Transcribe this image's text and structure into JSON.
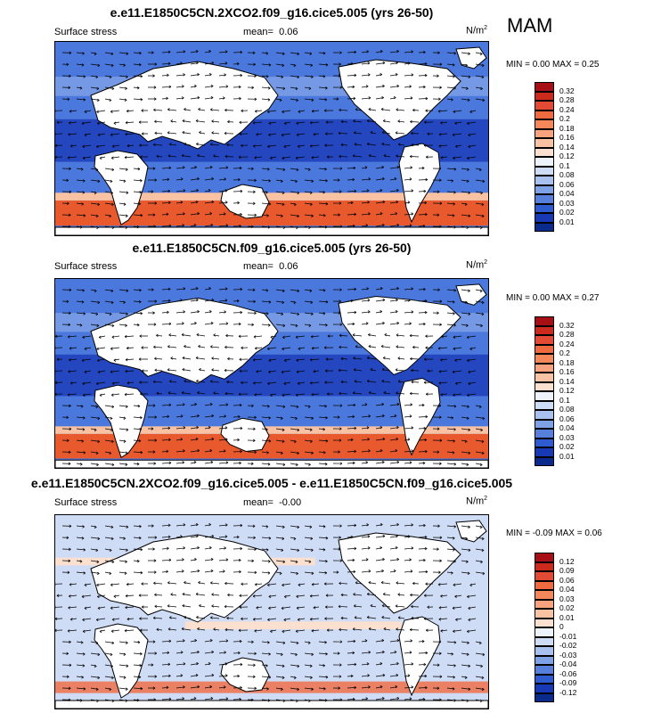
{
  "season": "MAM",
  "colors": {
    "ocean_deep": "#1432b4",
    "ocean_mid": "#4b78dc",
    "land": "#ffffff",
    "coast": "#000000",
    "warm": "#e8592e"
  },
  "panels": [
    {
      "title": "e.e11.E1850C5CN.2XCO2.f09_g16.cice5.005 (yrs 26-50)",
      "left_label": "Surface stress",
      "mean_label": "mean=",
      "mean_value": "0.06",
      "units_base": "N/m",
      "units_exp": "2",
      "minmax": "MIN =   0.00 MAX =   0.25",
      "type": "abs"
    },
    {
      "title": "e.e11.E1850C5CN.f09_g16.cice5.005 (yrs 26-50)",
      "left_label": "Surface stress",
      "mean_label": "mean=",
      "mean_value": "0.06",
      "units_base": "N/m",
      "units_exp": "2",
      "minmax": "MIN =   0.00 MAX =   0.27",
      "type": "abs"
    },
    {
      "title": "e.e11.E1850C5CN.2XCO2.f09_g16.cice5.005 - e.e11.E1850C5CN.f09_g16.cice5.005",
      "left_label": "Surface stress",
      "mean_label": "mean=",
      "mean_value": "-0.00",
      "units_base": "N/m",
      "units_exp": "2",
      "minmax": "MIN =  -0.09 MAX =   0.06",
      "type": "diff"
    }
  ],
  "colorbars": {
    "abs": {
      "labels": [
        "0.32",
        "0.28",
        "0.24",
        "0.2",
        "0.18",
        "0.16",
        "0.14",
        "0.12",
        "0.1",
        "0.08",
        "0.06",
        "0.04",
        "0.03",
        "0.02",
        "0.01"
      ],
      "colors": [
        "#a50f15",
        "#cb2a1c",
        "#e34a33",
        "#f06a40",
        "#f4885b",
        "#f7a47e",
        "#f9c2a3",
        "#fce0cf",
        "#eef2fb",
        "#cfdcf6",
        "#a9c1ef",
        "#7fa1e6",
        "#5680dc",
        "#2f5bd0",
        "#173ab4",
        "#0a2a8c"
      ]
    },
    "diff": {
      "labels": [
        "0.12",
        "0.09",
        "0.06",
        "0.04",
        "0.03",
        "0.02",
        "0.01",
        "0",
        "-0.01",
        "-0.02",
        "-0.03",
        "-0.04",
        "-0.06",
        "-0.09",
        "-0.12"
      ],
      "colors": [
        "#a50f15",
        "#cb2a1c",
        "#e34a33",
        "#f06a40",
        "#f4885b",
        "#f7a47e",
        "#f9c2a3",
        "#fce0cf",
        "#eef2fb",
        "#cfdcf6",
        "#a9c1ef",
        "#7fa1e6",
        "#5680dc",
        "#2f5bd0",
        "#173ab4",
        "#0a2a8c"
      ]
    }
  }
}
